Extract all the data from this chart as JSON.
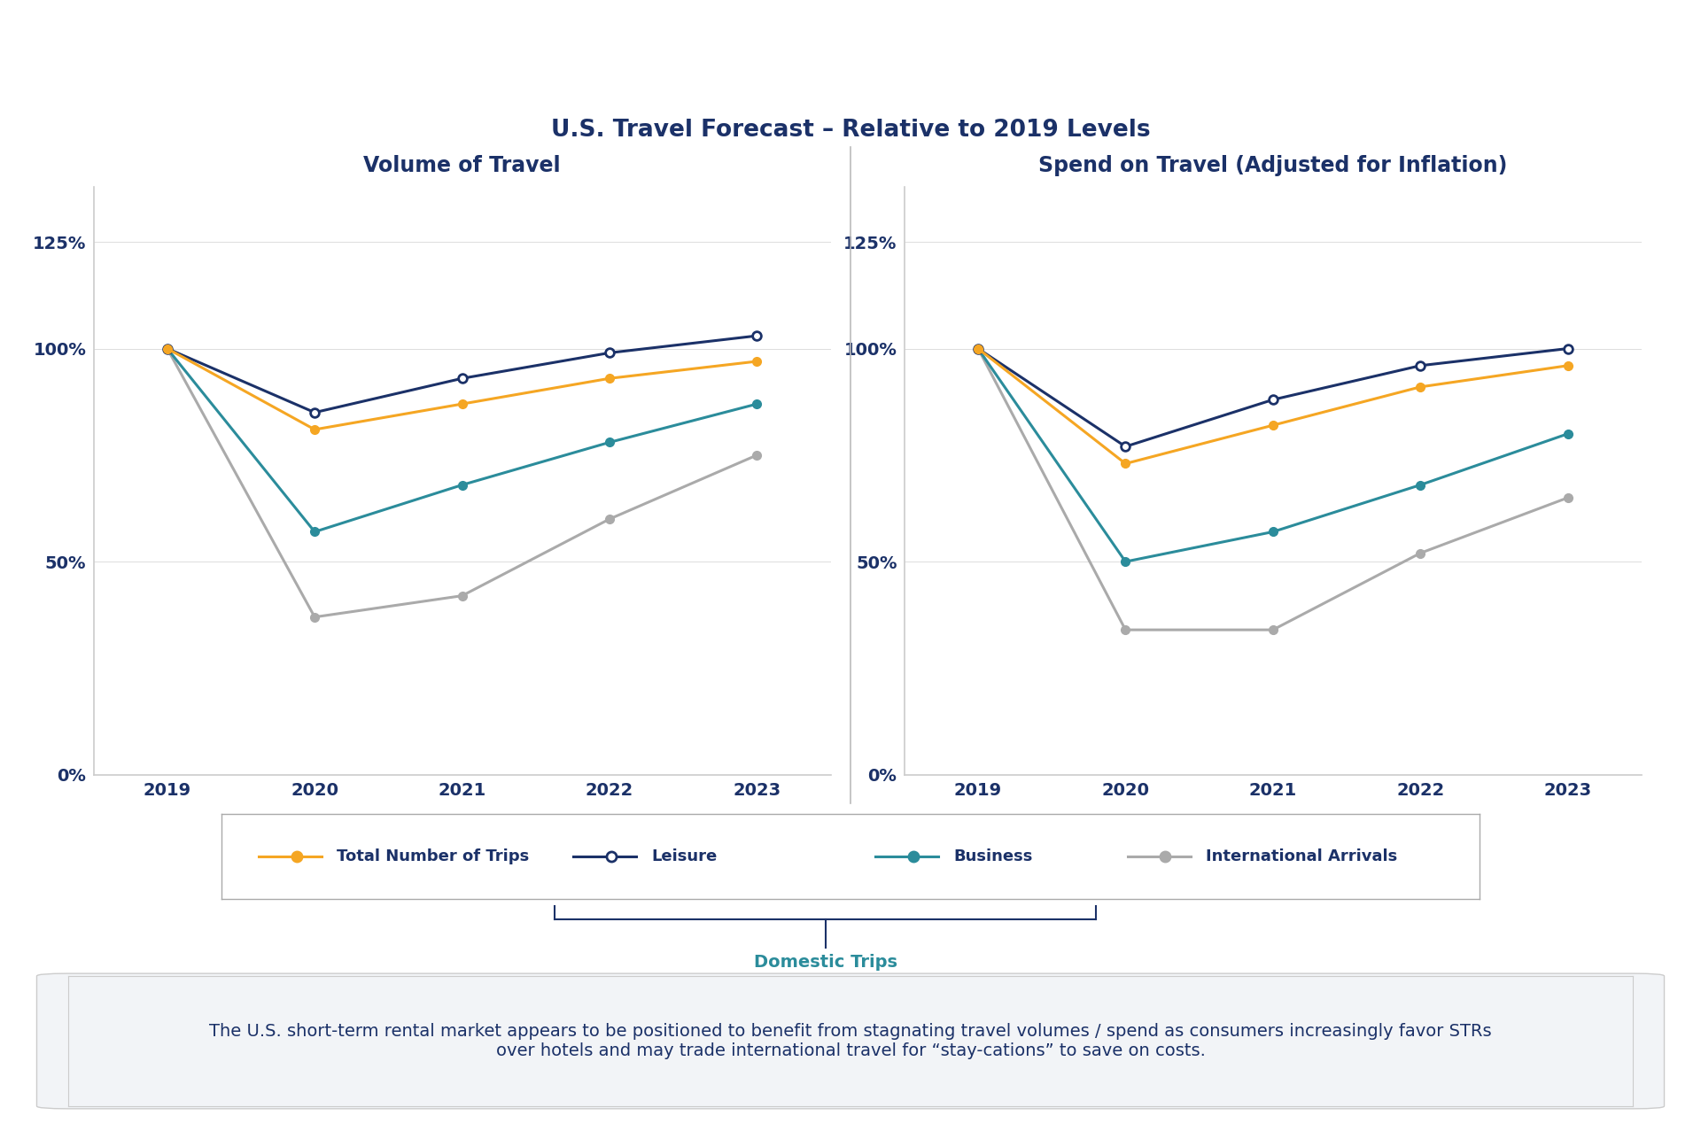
{
  "title": "U.S. Travel Forecast – Relative to 2019 Levels",
  "left_title": "Volume of Travel",
  "right_title": "Spend on Travel (Adjusted for Inflation)",
  "years": [
    2019,
    2020,
    2021,
    2022,
    2023
  ],
  "volume": {
    "total_trips": [
      100,
      81,
      87,
      93,
      97
    ],
    "leisure": [
      100,
      85,
      93,
      99,
      103
    ],
    "business": [
      100,
      57,
      68,
      78,
      87
    ],
    "international": [
      100,
      37,
      42,
      60,
      75
    ]
  },
  "spend": {
    "total_trips": [
      100,
      73,
      82,
      91,
      96
    ],
    "leisure": [
      100,
      77,
      88,
      96,
      100
    ],
    "business": [
      100,
      50,
      57,
      68,
      80
    ],
    "international": [
      100,
      34,
      34,
      52,
      65
    ]
  },
  "colors": {
    "total_trips": "#F5A623",
    "leisure": "#1B3168",
    "business": "#2B8C9B",
    "international": "#AAAAAA"
  },
  "background_color": "#FFFFFF",
  "annotation_bg": "#F2F4F7",
  "annotation_text": "The U.S. short-term rental market appears to be positioned to benefit from stagnating travel volumes / spend as consumers increasingly favor STRs\nover hotels and may trade international travel for “stay-cations” to save on costs.",
  "legend_labels": [
    "Total Number of Trips",
    "Leisure",
    "Business",
    "International Arrivals"
  ],
  "domestic_trips_label": "Domestic Trips",
  "divider_color": "#BBBBBB",
  "spine_color": "#CCCCCC",
  "tick_label_color": "#1B3168",
  "xtick_color": "#1B3168"
}
